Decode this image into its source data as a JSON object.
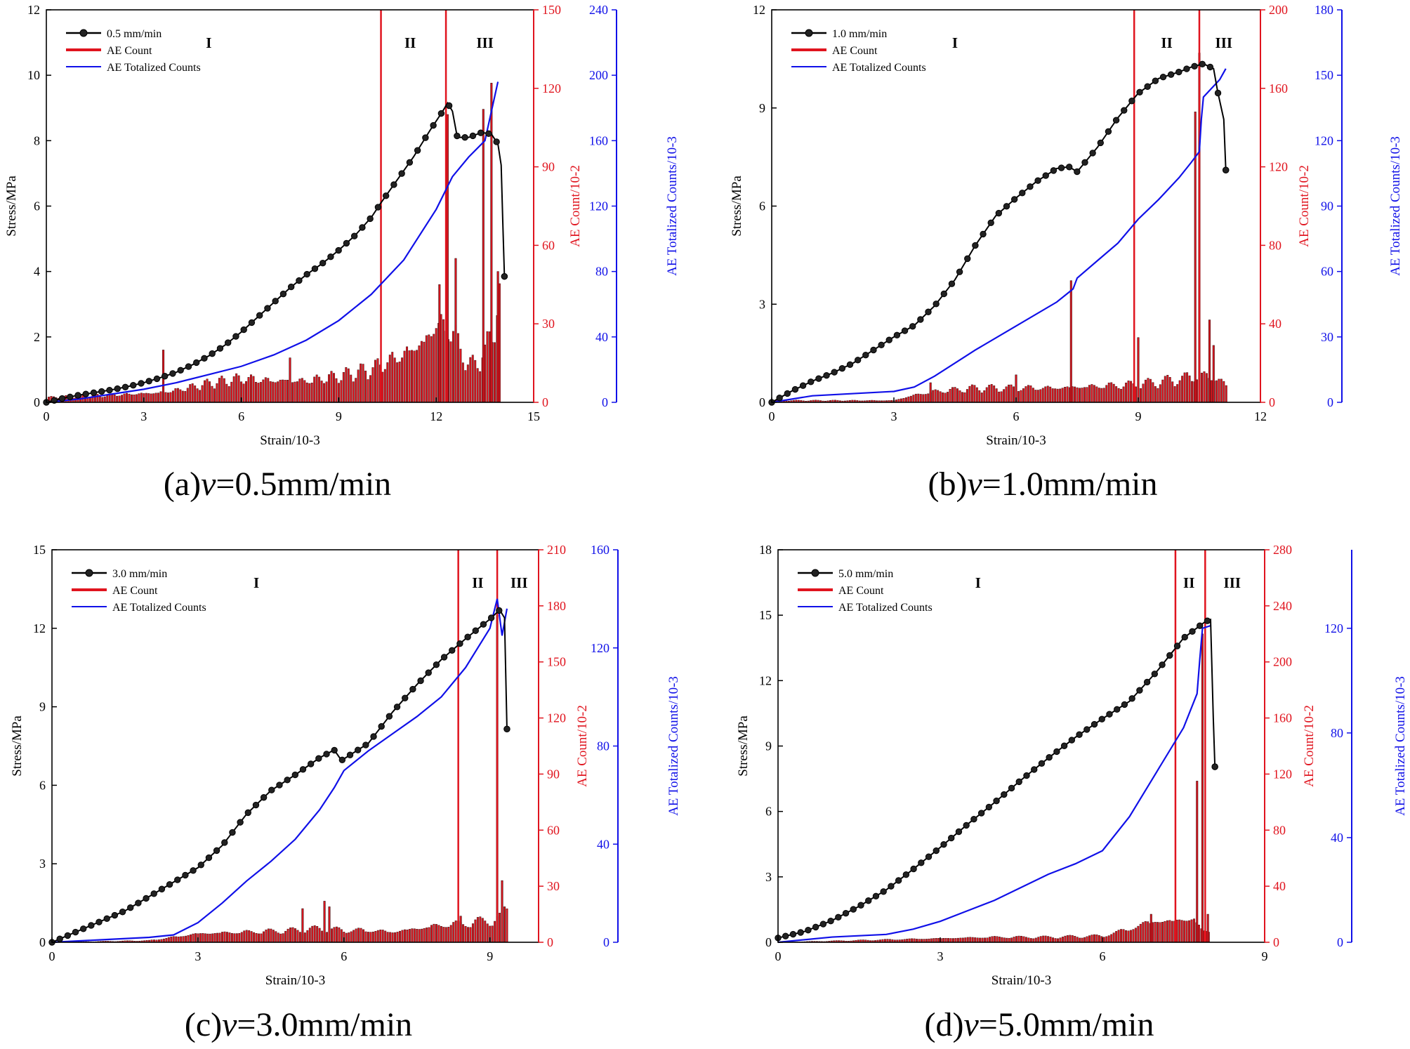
{
  "figure": {
    "captions": [
      {
        "prefix": "(a)",
        "var": "v",
        "rest": "=0.5mm/min"
      },
      {
        "prefix": "(b)",
        "var": "v",
        "rest": "=1.0mm/min"
      },
      {
        "prefix": "(c)",
        "var": "v",
        "rest": "=3.0mm/min"
      },
      {
        "prefix": "(d)",
        "var": "v",
        "rest": "=5.0mm/min"
      }
    ]
  },
  "colors": {
    "stress": "#000000",
    "ae_count": "#e0141e",
    "ae_total": "#1010e8",
    "bar_edge": "#3a1010"
  },
  "chart_data": [
    {
      "type": "line",
      "title": "(a)v=0.5mm/min",
      "xlabel": "Strain/10-3",
      "ylabel": "Stress/MPa",
      "y2label": "AE Count/10-2",
      "y3label": "AE Totalized Counts/10-3",
      "xlim": [
        0,
        15
      ],
      "xticks": [
        0,
        3,
        6,
        9,
        12,
        15
      ],
      "ylim": [
        0,
        12
      ],
      "yticks": [
        0,
        2,
        4,
        6,
        8,
        10,
        12
      ],
      "y2lim": [
        0,
        150
      ],
      "y2ticks": [
        0,
        30,
        60,
        90,
        120,
        150
      ],
      "y3lim": [
        0,
        240
      ],
      "y3ticks": [
        0,
        40,
        80,
        120,
        160,
        200,
        240
      ],
      "legend": [
        "0.5 mm/min",
        "AE Count",
        "AE Totalized Counts"
      ],
      "stage_lines": [
        10.3,
        12.3
      ],
      "stage_labels": [
        {
          "text": "I",
          "x": 5.0
        },
        {
          "text": "II",
          "x": 11.2
        },
        {
          "text": "III",
          "x": 13.5
        }
      ],
      "stress": [
        [
          0,
          0
        ],
        [
          0.5,
          0.12
        ],
        [
          1,
          0.22
        ],
        [
          1.5,
          0.3
        ],
        [
          2,
          0.38
        ],
        [
          2.5,
          0.48
        ],
        [
          3,
          0.6
        ],
        [
          3.5,
          0.75
        ],
        [
          4,
          0.92
        ],
        [
          4.5,
          1.15
        ],
        [
          5,
          1.42
        ],
        [
          5.5,
          1.75
        ],
        [
          6,
          2.15
        ],
        [
          6.5,
          2.6
        ],
        [
          7,
          3.05
        ],
        [
          7.5,
          3.5
        ],
        [
          8,
          3.9
        ],
        [
          8.5,
          4.25
        ],
        [
          9,
          4.65
        ],
        [
          9.5,
          5.1
        ],
        [
          10,
          5.65
        ],
        [
          10.3,
          6.1
        ],
        [
          10.8,
          6.8
        ],
        [
          11.3,
          7.5
        ],
        [
          11.8,
          8.3
        ],
        [
          12.2,
          8.9
        ],
        [
          12.35,
          9.15
        ],
        [
          12.5,
          8.9
        ],
        [
          12.65,
          8.1
        ],
        [
          13,
          8.1
        ],
        [
          13.4,
          8.25
        ],
        [
          13.7,
          8.2
        ],
        [
          13.9,
          7.9
        ],
        [
          14.0,
          7.25
        ],
        [
          14.05,
          5.5
        ],
        [
          14.1,
          3.85
        ]
      ],
      "ae_total": [
        [
          0,
          0
        ],
        [
          1,
          2
        ],
        [
          2,
          5
        ],
        [
          3,
          8
        ],
        [
          4,
          12
        ],
        [
          5,
          17
        ],
        [
          6,
          22
        ],
        [
          7,
          29
        ],
        [
          8,
          38
        ],
        [
          9,
          50
        ],
        [
          10,
          66
        ],
        [
          11,
          87
        ],
        [
          12,
          118
        ],
        [
          12.5,
          138
        ],
        [
          13,
          150
        ],
        [
          13.5,
          160
        ],
        [
          13.9,
          196
        ]
      ],
      "ae_count_envelope": [
        [
          0,
          2
        ],
        [
          2,
          3
        ],
        [
          3.5,
          4
        ],
        [
          4,
          5
        ],
        [
          5,
          8
        ],
        [
          6,
          10
        ],
        [
          7,
          9
        ],
        [
          8,
          9
        ],
        [
          9,
          11
        ],
        [
          10,
          14
        ],
        [
          11,
          20
        ],
        [
          11.7,
          26
        ],
        [
          12,
          33
        ],
        [
          12.5,
          30
        ],
        [
          13,
          15
        ],
        [
          13.5,
          20
        ],
        [
          14,
          45
        ]
      ],
      "ae_count_spikes": [
        [
          3.6,
          20
        ],
        [
          7.5,
          17
        ],
        [
          12.1,
          45
        ],
        [
          12.35,
          110
        ],
        [
          12.6,
          55
        ],
        [
          13.45,
          112
        ],
        [
          13.7,
          122
        ],
        [
          13.9,
          50
        ]
      ]
    },
    {
      "type": "line",
      "title": "(b)v=1.0mm/min",
      "xlabel": "Strain/10-3",
      "ylabel": "Stress/MPa",
      "y2label": "AE Count/10-2",
      "y3label": "AE Totalized Counts/10-3",
      "xlim": [
        0,
        12
      ],
      "xticks": [
        0,
        3,
        6,
        9,
        12
      ],
      "ylim": [
        0,
        12
      ],
      "yticks": [
        0,
        3,
        6,
        9,
        12
      ],
      "y2lim": [
        0,
        200
      ],
      "y2ticks": [
        0,
        40,
        80,
        120,
        160,
        200
      ],
      "y3lim": [
        0,
        180
      ],
      "y3ticks": [
        0,
        30,
        60,
        90,
        120,
        150,
        180
      ],
      "legend": [
        "1.0 mm/min",
        "AE Count",
        "AE Totalized Counts"
      ],
      "stage_lines": [
        8.9,
        10.5
      ],
      "stage_labels": [
        {
          "text": "I",
          "x": 4.5
        },
        {
          "text": "II",
          "x": 9.7
        },
        {
          "text": "III",
          "x": 11.1
        }
      ],
      "stress": [
        [
          0,
          0
        ],
        [
          0.5,
          0.35
        ],
        [
          1,
          0.65
        ],
        [
          1.5,
          0.9
        ],
        [
          2,
          1.2
        ],
        [
          2.5,
          1.6
        ],
        [
          3,
          2.0
        ],
        [
          3.5,
          2.35
        ],
        [
          4,
          2.95
        ],
        [
          4.5,
          3.75
        ],
        [
          5,
          4.8
        ],
        [
          5.5,
          5.7
        ],
        [
          6,
          6.25
        ],
        [
          6.5,
          6.75
        ],
        [
          7,
          7.15
        ],
        [
          7.3,
          7.2
        ],
        [
          7.5,
          7.05
        ],
        [
          8,
          7.8
        ],
        [
          8.5,
          8.7
        ],
        [
          9,
          9.45
        ],
        [
          9.5,
          9.9
        ],
        [
          10,
          10.1
        ],
        [
          10.3,
          10.25
        ],
        [
          10.6,
          10.35
        ],
        [
          10.85,
          10.2
        ],
        [
          10.95,
          9.5
        ],
        [
          11.1,
          8.65
        ],
        [
          11.15,
          7.1
        ]
      ],
      "ae_total": [
        [
          0,
          0
        ],
        [
          1,
          3
        ],
        [
          2,
          4
        ],
        [
          3,
          5
        ],
        [
          3.5,
          7
        ],
        [
          4,
          12
        ],
        [
          5,
          24
        ],
        [
          6,
          35
        ],
        [
          7,
          46
        ],
        [
          7.4,
          52
        ],
        [
          7.5,
          57
        ],
        [
          8,
          65
        ],
        [
          8.5,
          73
        ],
        [
          9,
          84
        ],
        [
          9.5,
          93
        ],
        [
          10,
          103
        ],
        [
          10.3,
          110
        ],
        [
          10.5,
          115
        ],
        [
          10.55,
          130
        ],
        [
          10.6,
          140
        ],
        [
          11,
          148
        ],
        [
          11.15,
          153
        ]
      ],
      "ae_count_envelope": [
        [
          0,
          1
        ],
        [
          3,
          1
        ],
        [
          3.5,
          4
        ],
        [
          4,
          6
        ],
        [
          5,
          8
        ],
        [
          6,
          8
        ],
        [
          7,
          8
        ],
        [
          8,
          9
        ],
        [
          9,
          10
        ],
        [
          10,
          13
        ],
        [
          10.5,
          15
        ],
        [
          11,
          13
        ],
        [
          11.2,
          8
        ]
      ],
      "ae_count_spikes": [
        [
          3.9,
          10
        ],
        [
          6.0,
          14
        ],
        [
          7.35,
          62
        ],
        [
          9.0,
          33
        ],
        [
          10.4,
          148
        ],
        [
          10.5,
          178
        ],
        [
          10.75,
          42
        ],
        [
          10.85,
          29
        ]
      ]
    },
    {
      "type": "line",
      "title": "(c)v=3.0mm/min",
      "xlabel": "Strain/10-3",
      "ylabel": "Stress/MPa",
      "y2label": "AE Count/10-2",
      "y3label": "AE Totalized Counts/10-3",
      "xlim": [
        0,
        10
      ],
      "xticks": [
        0,
        3,
        6,
        9
      ],
      "ylim": [
        0,
        15
      ],
      "yticks": [
        0,
        3,
        6,
        9,
        12,
        15
      ],
      "y2lim": [
        0,
        210
      ],
      "y2ticks": [
        0,
        30,
        60,
        90,
        120,
        150,
        180,
        210
      ],
      "y3lim": [
        0,
        160
      ],
      "y3ticks": [
        0,
        40,
        80,
        120,
        160
      ],
      "legend": [
        "3.0 mm/min",
        "AE Count",
        "AE Totalized Counts"
      ],
      "stage_lines": [
        8.35,
        9.15
      ],
      "stage_labels": [
        {
          "text": "I",
          "x": 4.2
        },
        {
          "text": "II",
          "x": 8.75
        },
        {
          "text": "III",
          "x": 9.6
        }
      ],
      "stress": [
        [
          0,
          0
        ],
        [
          0.5,
          0.4
        ],
        [
          1,
          0.8
        ],
        [
          1.5,
          1.2
        ],
        [
          2,
          1.75
        ],
        [
          2.5,
          2.3
        ],
        [
          3,
          2.85
        ],
        [
          3.5,
          3.7
        ],
        [
          4,
          4.9
        ],
        [
          4.5,
          5.8
        ],
        [
          5,
          6.4
        ],
        [
          5.5,
          7.05
        ],
        [
          5.8,
          7.35
        ],
        [
          5.95,
          6.95
        ],
        [
          6.5,
          7.6
        ],
        [
          7,
          8.8
        ],
        [
          7.5,
          9.85
        ],
        [
          8,
          10.8
        ],
        [
          8.5,
          11.6
        ],
        [
          9,
          12.35
        ],
        [
          9.2,
          12.7
        ],
        [
          9.3,
          12.4
        ],
        [
          9.35,
          8.15
        ]
      ],
      "ae_total": [
        [
          0,
          0
        ],
        [
          1,
          1
        ],
        [
          2,
          2
        ],
        [
          2.5,
          3
        ],
        [
          3,
          8
        ],
        [
          3.5,
          16
        ],
        [
          4,
          25
        ],
        [
          4.5,
          33
        ],
        [
          5,
          42
        ],
        [
          5.5,
          54
        ],
        [
          5.8,
          63
        ],
        [
          6,
          70
        ],
        [
          6.5,
          78
        ],
        [
          7,
          85
        ],
        [
          7.5,
          92
        ],
        [
          8,
          100
        ],
        [
          8.5,
          112
        ],
        [
          9,
          128
        ],
        [
          9.15,
          140
        ],
        [
          9.25,
          125
        ],
        [
          9.35,
          136
        ]
      ],
      "ae_count_envelope": [
        [
          0,
          0
        ],
        [
          2,
          1
        ],
        [
          2.5,
          3
        ],
        [
          3,
          5
        ],
        [
          4,
          6
        ],
        [
          5,
          7
        ],
        [
          5.5,
          8
        ],
        [
          6,
          7
        ],
        [
          6.5,
          7
        ],
        [
          7,
          6
        ],
        [
          7.5,
          8
        ],
        [
          8,
          10
        ],
        [
          8.5,
          11
        ],
        [
          9,
          13
        ],
        [
          9.2,
          14
        ],
        [
          9.35,
          19
        ]
      ],
      "ae_count_spikes": [
        [
          5.15,
          18
        ],
        [
          5.6,
          22
        ],
        [
          5.7,
          19
        ],
        [
          8.4,
          14
        ],
        [
          9.15,
          175
        ],
        [
          9.25,
          33
        ],
        [
          9.3,
          19
        ]
      ]
    },
    {
      "type": "line",
      "title": "(d)v=5.0mm/min",
      "xlabel": "Strain/10-3",
      "ylabel": "Stress/MPa",
      "y2label": "AE Count/10-2",
      "y3label": "AE Totalized Counts/10-3",
      "xlim": [
        0,
        9
      ],
      "xticks": [
        0,
        3,
        6,
        9
      ],
      "ylim": [
        0,
        18
      ],
      "yticks": [
        0,
        3,
        6,
        9,
        12,
        15,
        18
      ],
      "y2lim": [
        0,
        280
      ],
      "y2ticks": [
        0,
        40,
        80,
        120,
        160,
        200,
        240,
        280
      ],
      "y3lim": [
        0,
        150
      ],
      "y3ticks": [
        0,
        40,
        80,
        120
      ],
      "legend": [
        "5.0 mm/min",
        "AE Count",
        "AE Totalized Counts"
      ],
      "stage_lines": [
        7.35,
        7.9
      ],
      "stage_labels": [
        {
          "text": "I",
          "x": 3.7
        },
        {
          "text": "II",
          "x": 7.6
        },
        {
          "text": "III",
          "x": 8.4
        }
      ],
      "stress": [
        [
          0,
          0.2
        ],
        [
          0.5,
          0.5
        ],
        [
          1,
          1.0
        ],
        [
          1.5,
          1.65
        ],
        [
          2,
          2.4
        ],
        [
          2.5,
          3.35
        ],
        [
          3,
          4.35
        ],
        [
          3.5,
          5.4
        ],
        [
          4,
          6.4
        ],
        [
          4.5,
          7.45
        ],
        [
          5,
          8.45
        ],
        [
          5.5,
          9.4
        ],
        [
          6,
          10.25
        ],
        [
          6.5,
          11.05
        ],
        [
          7,
          12.4
        ],
        [
          7.5,
          13.95
        ],
        [
          7.9,
          14.7
        ],
        [
          8.0,
          14.8
        ],
        [
          8.05,
          10.3
        ],
        [
          8.08,
          8.05
        ]
      ],
      "ae_total": [
        [
          0,
          0
        ],
        [
          1,
          2
        ],
        [
          2,
          3
        ],
        [
          2.5,
          5
        ],
        [
          3,
          8
        ],
        [
          3.5,
          12
        ],
        [
          4,
          16
        ],
        [
          4.5,
          21
        ],
        [
          5,
          26
        ],
        [
          5.5,
          30
        ],
        [
          6,
          35
        ],
        [
          6.5,
          48
        ],
        [
          7,
          65
        ],
        [
          7.5,
          82
        ],
        [
          7.75,
          95
        ],
        [
          7.8,
          108
        ],
        [
          7.85,
          120
        ],
        [
          8.0,
          121
        ]
      ],
      "ae_count_envelope": [
        [
          0,
          0
        ],
        [
          2,
          2
        ],
        [
          3,
          3
        ],
        [
          4,
          4
        ],
        [
          5,
          4
        ],
        [
          6,
          5
        ],
        [
          6.3,
          8
        ],
        [
          6.6,
          12
        ],
        [
          7,
          17
        ],
        [
          7.3,
          16
        ],
        [
          7.7,
          19
        ],
        [
          7.85,
          8
        ],
        [
          8.0,
          8
        ]
      ],
      "ae_count_spikes": [
        [
          6.9,
          20
        ],
        [
          7.75,
          115
        ],
        [
          7.85,
          220
        ],
        [
          7.95,
          20
        ]
      ]
    }
  ]
}
